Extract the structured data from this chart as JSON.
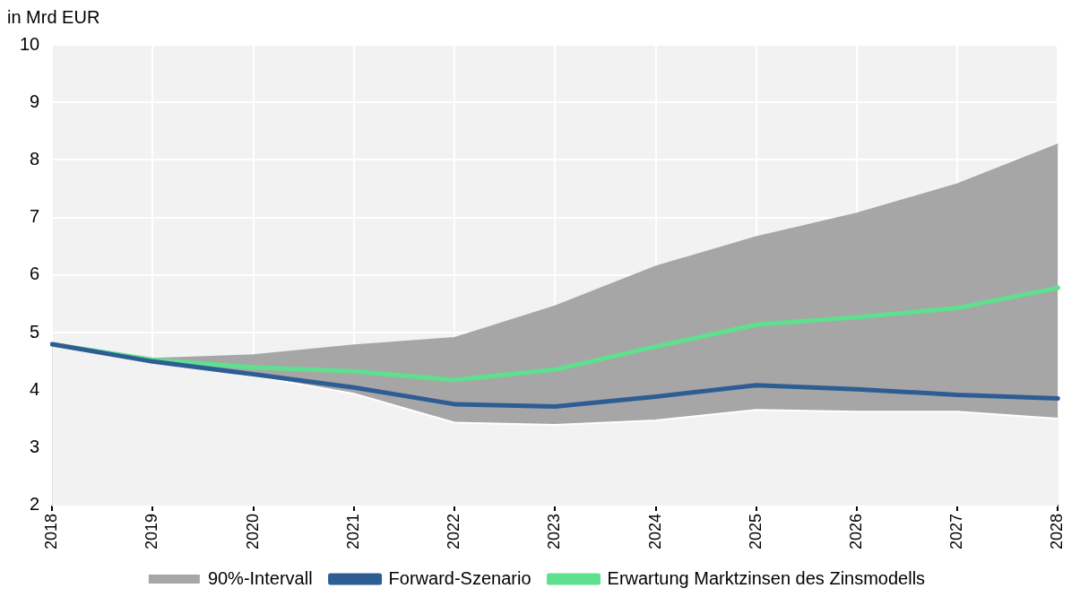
{
  "chart_data": {
    "type": "line",
    "ylabel": "in Mrd EUR",
    "categories": [
      "2018",
      "2019",
      "2020",
      "2021",
      "2022",
      "2023",
      "2024",
      "2025",
      "2026",
      "2027",
      "2028"
    ],
    "ylim": [
      2,
      10
    ],
    "yticks": [
      2,
      3,
      4,
      5,
      6,
      7,
      8,
      9,
      10
    ],
    "grid": true,
    "legend": "bottom",
    "line_style": "solid",
    "marker": "none",
    "series": [
      {
        "name": "90%-Intervall",
        "type": "area",
        "color": "#a6a6a6",
        "values": [
          4.81,
          4.55,
          4.61,
          4.78,
          4.91,
          5.46,
          6.15,
          6.66,
          7.07,
          7.58,
          8.27
        ]
      },
      {
        "type": "area",
        "color": "#f2f2f2",
        "values": [
          4.8,
          4.5,
          4.25,
          3.94,
          3.44,
          3.4,
          3.48,
          3.66,
          3.63,
          3.63,
          3.51
        ]
      },
      {
        "name": "Forward-Szenario",
        "color": "#2e5d94",
        "values": [
          4.8,
          4.5,
          4.28,
          4.05,
          3.76,
          3.72,
          3.89,
          4.09,
          4.02,
          3.92,
          3.86
        ]
      },
      {
        "name": "Erwartung Marktzinsen des Zinsmodells",
        "color": "#5ee08f",
        "values": [
          4.8,
          4.53,
          4.4,
          4.33,
          4.18,
          4.36,
          4.76,
          5.14,
          5.27,
          5.43,
          5.78
        ]
      }
    ]
  }
}
